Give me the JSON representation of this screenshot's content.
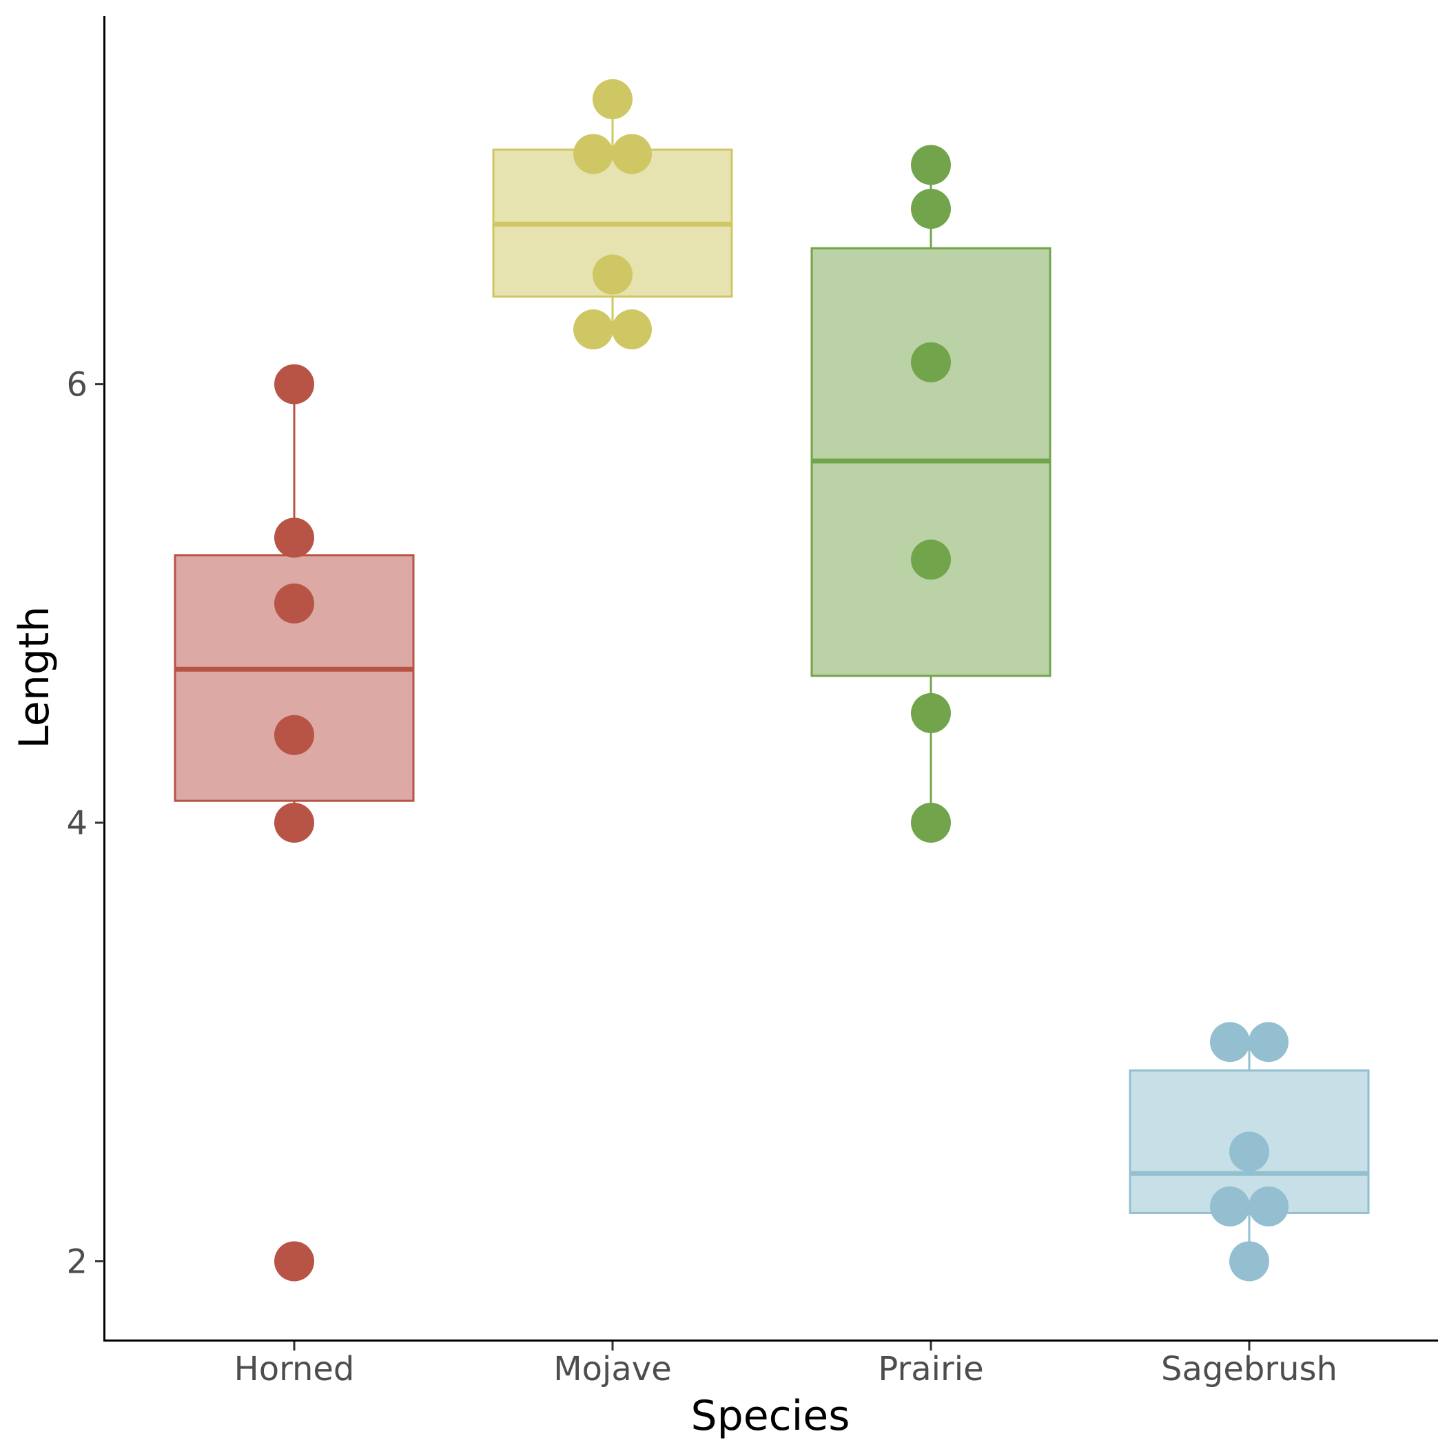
{
  "chart_data": {
    "type": "boxplot",
    "title": "",
    "xlabel": "Species",
    "ylabel": "Length",
    "ylim": [
      1.64,
      7.68
    ],
    "y_ticks": [
      "2",
      "4",
      "6"
    ],
    "grid": false,
    "legend": "none",
    "categories": [
      "Horned",
      "Mojave",
      "Prairie",
      "Sagebrush"
    ],
    "series": [
      {
        "name": "Horned",
        "color": "#b85446",
        "fill": "#dca9a4",
        "points": [
          6.0,
          5.3,
          5.0,
          4.4,
          4.0,
          2.0
        ],
        "box": {
          "q1": 4.1,
          "median": 4.7,
          "q3": 5.22,
          "whisker_low": 4.0,
          "whisker_high": 6.0
        }
      },
      {
        "name": "Mojave",
        "color": "#cec763",
        "fill": "#e6e3b0",
        "points": [
          7.3,
          7.05,
          7.05,
          6.5,
          6.25,
          6.25
        ],
        "box": {
          "q1": 6.4,
          "median": 6.73,
          "q3": 7.07,
          "whisker_low": 6.25,
          "whisker_high": 7.3
        }
      },
      {
        "name": "Prairie",
        "color": "#72a44b",
        "fill": "#bbd2a6",
        "points": [
          7.0,
          6.8,
          6.1,
          5.2,
          4.5,
          4.0
        ],
        "box": {
          "q1": 4.67,
          "median": 5.65,
          "q3": 6.62,
          "whisker_low": 4.0,
          "whisker_high": 7.0
        }
      },
      {
        "name": "Sagebrush",
        "color": "#93bfd1",
        "fill": "#c7dfe6",
        "points": [
          3.0,
          3.0,
          2.5,
          2.25,
          2.25,
          2.0
        ],
        "box": {
          "q1": 2.22,
          "median": 2.4,
          "q3": 2.87,
          "whisker_low": 2.0,
          "whisker_high": 3.0
        }
      }
    ]
  }
}
